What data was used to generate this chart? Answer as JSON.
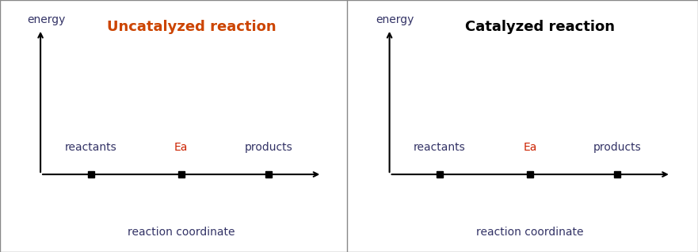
{
  "left_title": "Uncatalyzed reaction",
  "right_title": "Catalyzed reaction",
  "left_title_color": "#cc4400",
  "right_title_color": "#000000",
  "title_fontsize": 13,
  "energy_label": "energy",
  "energy_label_color": "#333366",
  "xlabel": "reaction coordinate",
  "xlabel_color": "#333366",
  "xlabel_fontsize": 10,
  "energy_label_fontsize": 10,
  "axis_color": "#000000",
  "marker_color": "#000000",
  "marker_size": 6,
  "labels": [
    "reactants",
    "Ea",
    "products"
  ],
  "label_colors": [
    "#333366",
    "#cc2200",
    "#333366"
  ],
  "label_fontsize": 10,
  "x_positions": [
    0.25,
    0.52,
    0.78
  ],
  "background_color": "#ffffff",
  "border_color": "#888888",
  "divider_color": "#888888",
  "arrow_lw": 1.5,
  "arrow_mutation_scale": 10
}
